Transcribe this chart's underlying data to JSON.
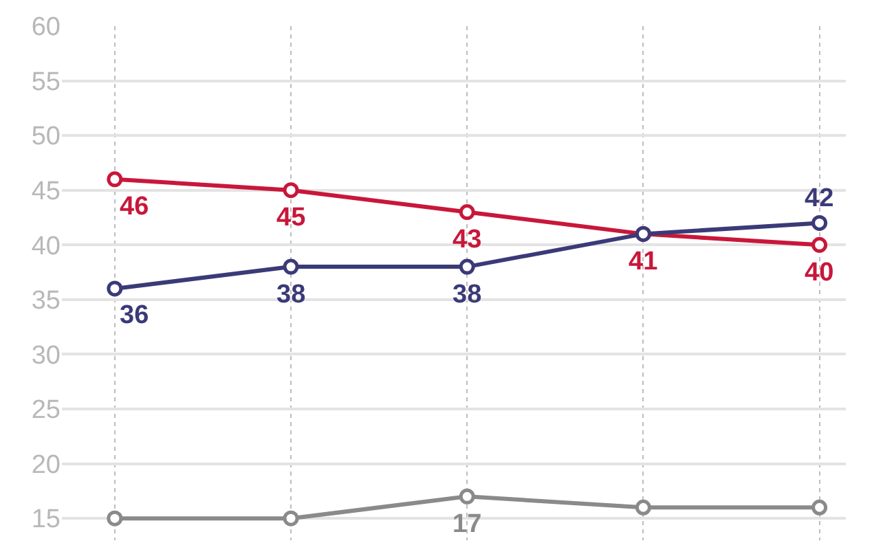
{
  "chart_data": {
    "type": "line",
    "categories": [
      null,
      null,
      null,
      null,
      null
    ],
    "series": [
      {
        "color": "#c8173a",
        "values": [
          46,
          45,
          43,
          41,
          40
        ],
        "value_labels": [
          "46",
          "45",
          "43",
          "41",
          "40"
        ]
      },
      {
        "color": "#3b3a78",
        "values": [
          36,
          38,
          38,
          41,
          42
        ],
        "value_labels": [
          "36",
          "38",
          "38",
          null,
          "42"
        ]
      },
      {
        "color": "#8a8a8a",
        "values": [
          15,
          15,
          17,
          16,
          16
        ],
        "value_labels": [
          null,
          null,
          "17",
          null,
          null
        ]
      }
    ],
    "ylim": [
      13,
      60
    ],
    "yticks": [
      15,
      20,
      25,
      30,
      35,
      40,
      45,
      50,
      55,
      60
    ],
    "grid": true,
    "marker": "circle",
    "line_style": "solid"
  }
}
